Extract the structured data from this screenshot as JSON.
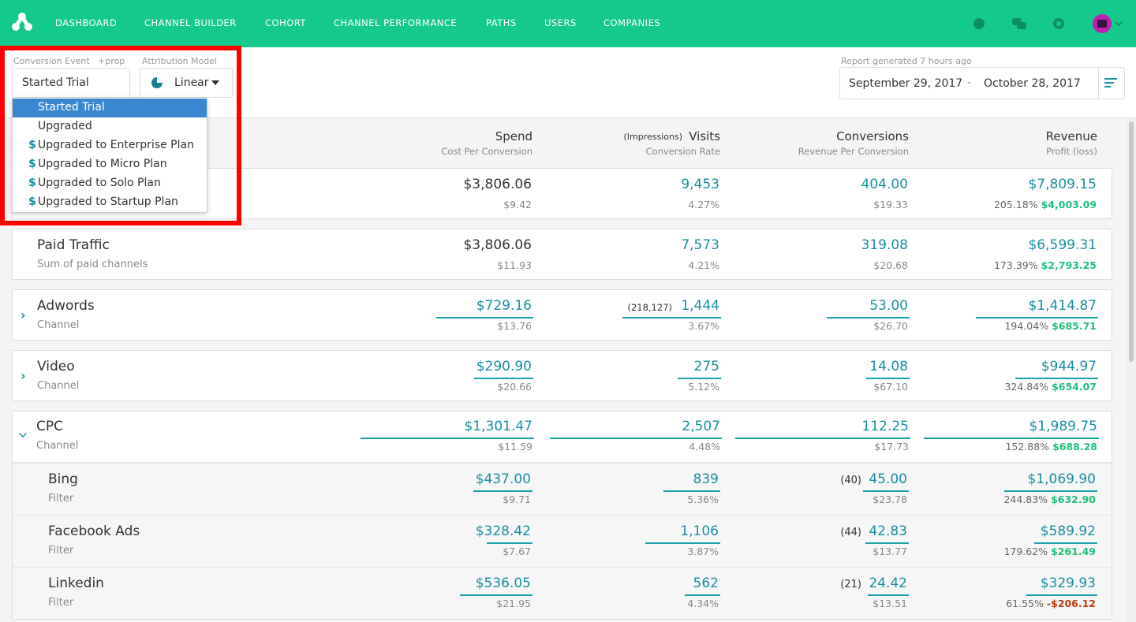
{
  "nav": {
    "items": [
      "DASHBOARD",
      "CHANNEL BUILDER",
      "COHORT",
      "CHANNEL PERFORMANCE",
      "PATHS",
      "USERS",
      "COMPANIES"
    ]
  },
  "controls": {
    "conversion_event_label": "Conversion Event",
    "prop_link": "+prop",
    "attribution_label": "Attribution Model",
    "event_input": "Started Trial",
    "model": "Linear",
    "report_generated": "Report generated 7 hours ago",
    "date_start": "September 29, 2017",
    "date_separator": "-",
    "date_end": "October 28, 2017"
  },
  "dropdown": {
    "options": [
      {
        "label": "Started Trial"
      },
      {
        "label": "Upgraded"
      },
      {
        "icon": "$",
        "label": "Upgraded to Enterprise Plan"
      },
      {
        "icon": "$",
        "label": "Upgraded to Micro Plan"
      },
      {
        "icon": "$",
        "label": "Upgraded to Solo Plan"
      },
      {
        "icon": "$",
        "label": "Upgraded to Startup Plan"
      }
    ]
  },
  "table": {
    "columns": [
      {
        "title": "Spend",
        "subtitle": "Cost Per Conversion"
      },
      {
        "prefix": "(Impressions)",
        "title": "Visits",
        "subtitle": "Conversion Rate"
      },
      {
        "title": "Conversions",
        "subtitle": "Revenue Per Conversion"
      },
      {
        "title": "Revenue",
        "subtitle": "Profit (loss)"
      }
    ],
    "rows": [
      {
        "spend": "$3,806.06",
        "cost_per_conversion": "$9.42",
        "visits": "9,453",
        "conversion_rate": "4.27%",
        "conversions": "404.00",
        "revenue_per_conversion": "$19.33",
        "revenue": "$7,809.15",
        "profit_pct": "205.18%",
        "profit": "$4,003.09"
      },
      {
        "name": "Paid Traffic",
        "sub": "Sum of paid channels",
        "spend": "$3,806.06",
        "cost_per_conversion": "$11.93",
        "visits": "7,573",
        "conversion_rate": "4.21%",
        "conversions": "319.08",
        "revenue_per_conversion": "$20.68",
        "revenue": "$6,599.31",
        "profit_pct": "173.39%",
        "profit": "$2,793.25"
      },
      {
        "name": "Adwords",
        "sub": "Channel",
        "spend": "$729.16",
        "cost_per_conversion": "$13.76",
        "impressions": "(218,127)",
        "visits": "1,444",
        "conversion_rate": "3.67%",
        "conversions": "53.00",
        "revenue_per_conversion": "$26.70",
        "revenue": "$1,414.87",
        "profit_pct": "194.04%",
        "profit": "$685.71"
      },
      {
        "name": "Video",
        "sub": "Channel",
        "spend": "$290.90",
        "cost_per_conversion": "$20.66",
        "visits": "275",
        "conversion_rate": "5.12%",
        "conversions": "14.08",
        "revenue_per_conversion": "$67.10",
        "revenue": "$944.97",
        "profit_pct": "324.84%",
        "profit": "$654.07"
      },
      {
        "name": "CPC",
        "sub": "Channel",
        "spend": "$1,301.47",
        "cost_per_conversion": "$11.59",
        "visits": "2,507",
        "conversion_rate": "4.48%",
        "conversions": "112.25",
        "revenue_per_conversion": "$17.73",
        "revenue": "$1,989.75",
        "profit_pct": "152.88%",
        "profit": "$688.28"
      },
      {
        "name": "Bing",
        "sub": "Filter",
        "spend": "$437.00",
        "cost_per_conversion": "$9.71",
        "visits": "839",
        "conversion_rate": "5.36%",
        "conversions_prefix": "(40)",
        "conversions": "45.00",
        "revenue_per_conversion": "$23.78",
        "revenue": "$1,069.90",
        "profit_pct": "244.83%",
        "profit": "$632.90"
      },
      {
        "name": "Facebook Ads",
        "sub": "Filter",
        "spend": "$328.42",
        "cost_per_conversion": "$7.67",
        "visits": "1,106",
        "conversion_rate": "3.87%",
        "conversions_prefix": "(44)",
        "conversions": "42.83",
        "revenue_per_conversion": "$13.77",
        "revenue": "$589.92",
        "profit_pct": "179.62%",
        "profit": "$261.49"
      },
      {
        "name": "Linkedin",
        "sub": "Filter",
        "spend": "$536.05",
        "cost_per_conversion": "$21.95",
        "visits": "562",
        "conversion_rate": "4.34%",
        "conversions_prefix": "(21)",
        "conversions": "24.42",
        "revenue_per_conversion": "$13.51",
        "revenue": "$329.93",
        "profit_pct": "61.55%",
        "profit": "-$206.12"
      }
    ]
  }
}
